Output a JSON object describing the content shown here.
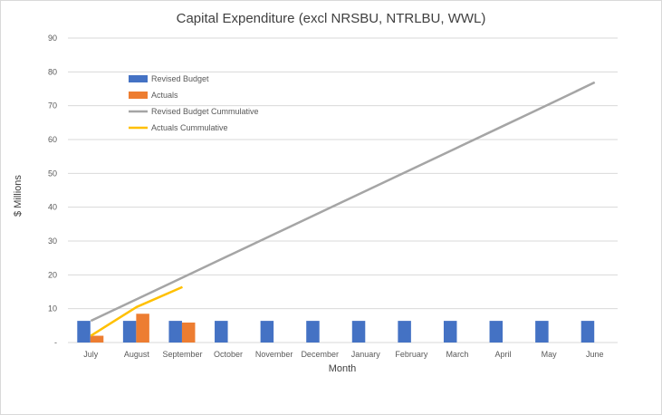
{
  "chart_data": {
    "type": "bar",
    "title": "Capital Expenditure (excl NRSBU, NTRLBU, WWL)",
    "xlabel": "Month",
    "ylabel": "$ Millions",
    "ylim": [
      0,
      90
    ],
    "y_ticks": [
      "-",
      "10",
      "20",
      "30",
      "40",
      "50",
      "60",
      "70",
      "80",
      "90"
    ],
    "grid": true,
    "legend_position": "top-left",
    "categories": [
      "July",
      "August",
      "September",
      "October",
      "November",
      "December",
      "January",
      "February",
      "March",
      "April",
      "May",
      "June"
    ],
    "series": [
      {
        "name": "Revised Budget",
        "type": "bar",
        "color": "#4472c4",
        "values": [
          6.4,
          6.4,
          6.4,
          6.4,
          6.4,
          6.4,
          6.4,
          6.4,
          6.4,
          6.4,
          6.4,
          6.4
        ]
      },
      {
        "name": "Actuals",
        "type": "bar",
        "color": "#ed7d31",
        "values": [
          2.0,
          8.5,
          5.9,
          null,
          null,
          null,
          null,
          null,
          null,
          null,
          null,
          null
        ]
      },
      {
        "name": "Revised Budget Cummulative",
        "type": "line",
        "color": "#a5a5a5",
        "values": [
          6.4,
          12.8,
          19.2,
          25.6,
          32.0,
          38.4,
          44.8,
          51.2,
          57.6,
          64.0,
          70.4,
          76.9
        ]
      },
      {
        "name": "Actuals Cummulative",
        "type": "line",
        "color": "#ffc000",
        "values": [
          2.0,
          10.5,
          16.4,
          null,
          null,
          null,
          null,
          null,
          null,
          null,
          null,
          null
        ]
      }
    ]
  }
}
